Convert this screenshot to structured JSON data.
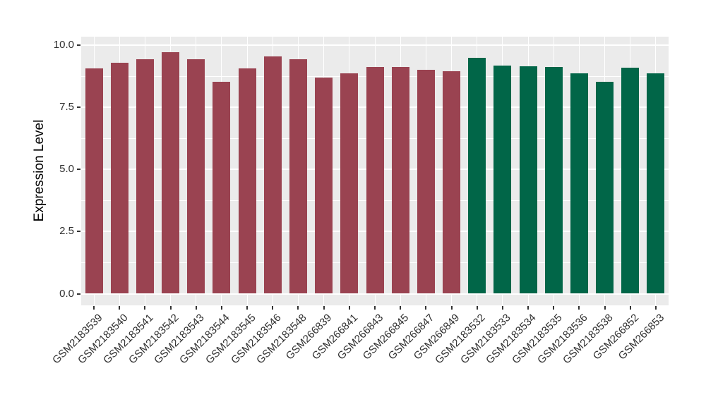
{
  "chart_data": {
    "type": "bar",
    "title": "",
    "xlabel": "",
    "ylabel": "Expression Level",
    "ylim": [
      0,
      10
    ],
    "yticks": [
      "0.0",
      "2.5",
      "5.0",
      "7.5",
      "10.0"
    ],
    "ytick_values": [
      0,
      2.5,
      5,
      7.5,
      10
    ],
    "minor_gridline_values": [
      1.25,
      3.75,
      6.25,
      8.75
    ],
    "grid": "on",
    "legend_position": "none",
    "panel_background": "#EBEBEB",
    "gridline_color": "#FFFFFF",
    "tick_color": "#333333",
    "series": [
      {
        "color": "#9A4351",
        "categories": [
          "GSM2183539",
          "GSM2183540",
          "GSM2183541",
          "GSM2183542",
          "GSM2183543",
          "GSM2183544",
          "GSM2183545",
          "GSM2183546",
          "GSM2183548",
          "GSM266839",
          "GSM266841",
          "GSM266843",
          "GSM266845",
          "GSM266847",
          "GSM266849"
        ],
        "values": [
          9.07,
          9.3,
          9.45,
          9.73,
          9.44,
          8.54,
          9.07,
          9.56,
          9.45,
          8.71,
          8.88,
          9.12,
          9.14,
          9.01,
          8.95
        ]
      },
      {
        "color": "#016648",
        "categories": [
          "GSM2183532",
          "GSM2183533",
          "GSM2183534",
          "GSM2183535",
          "GSM2183536",
          "GSM2183538",
          "GSM266852",
          "GSM266853"
        ],
        "values": [
          9.5,
          9.19,
          9.16,
          9.13,
          8.88,
          8.54,
          9.1,
          8.88
        ]
      }
    ]
  }
}
